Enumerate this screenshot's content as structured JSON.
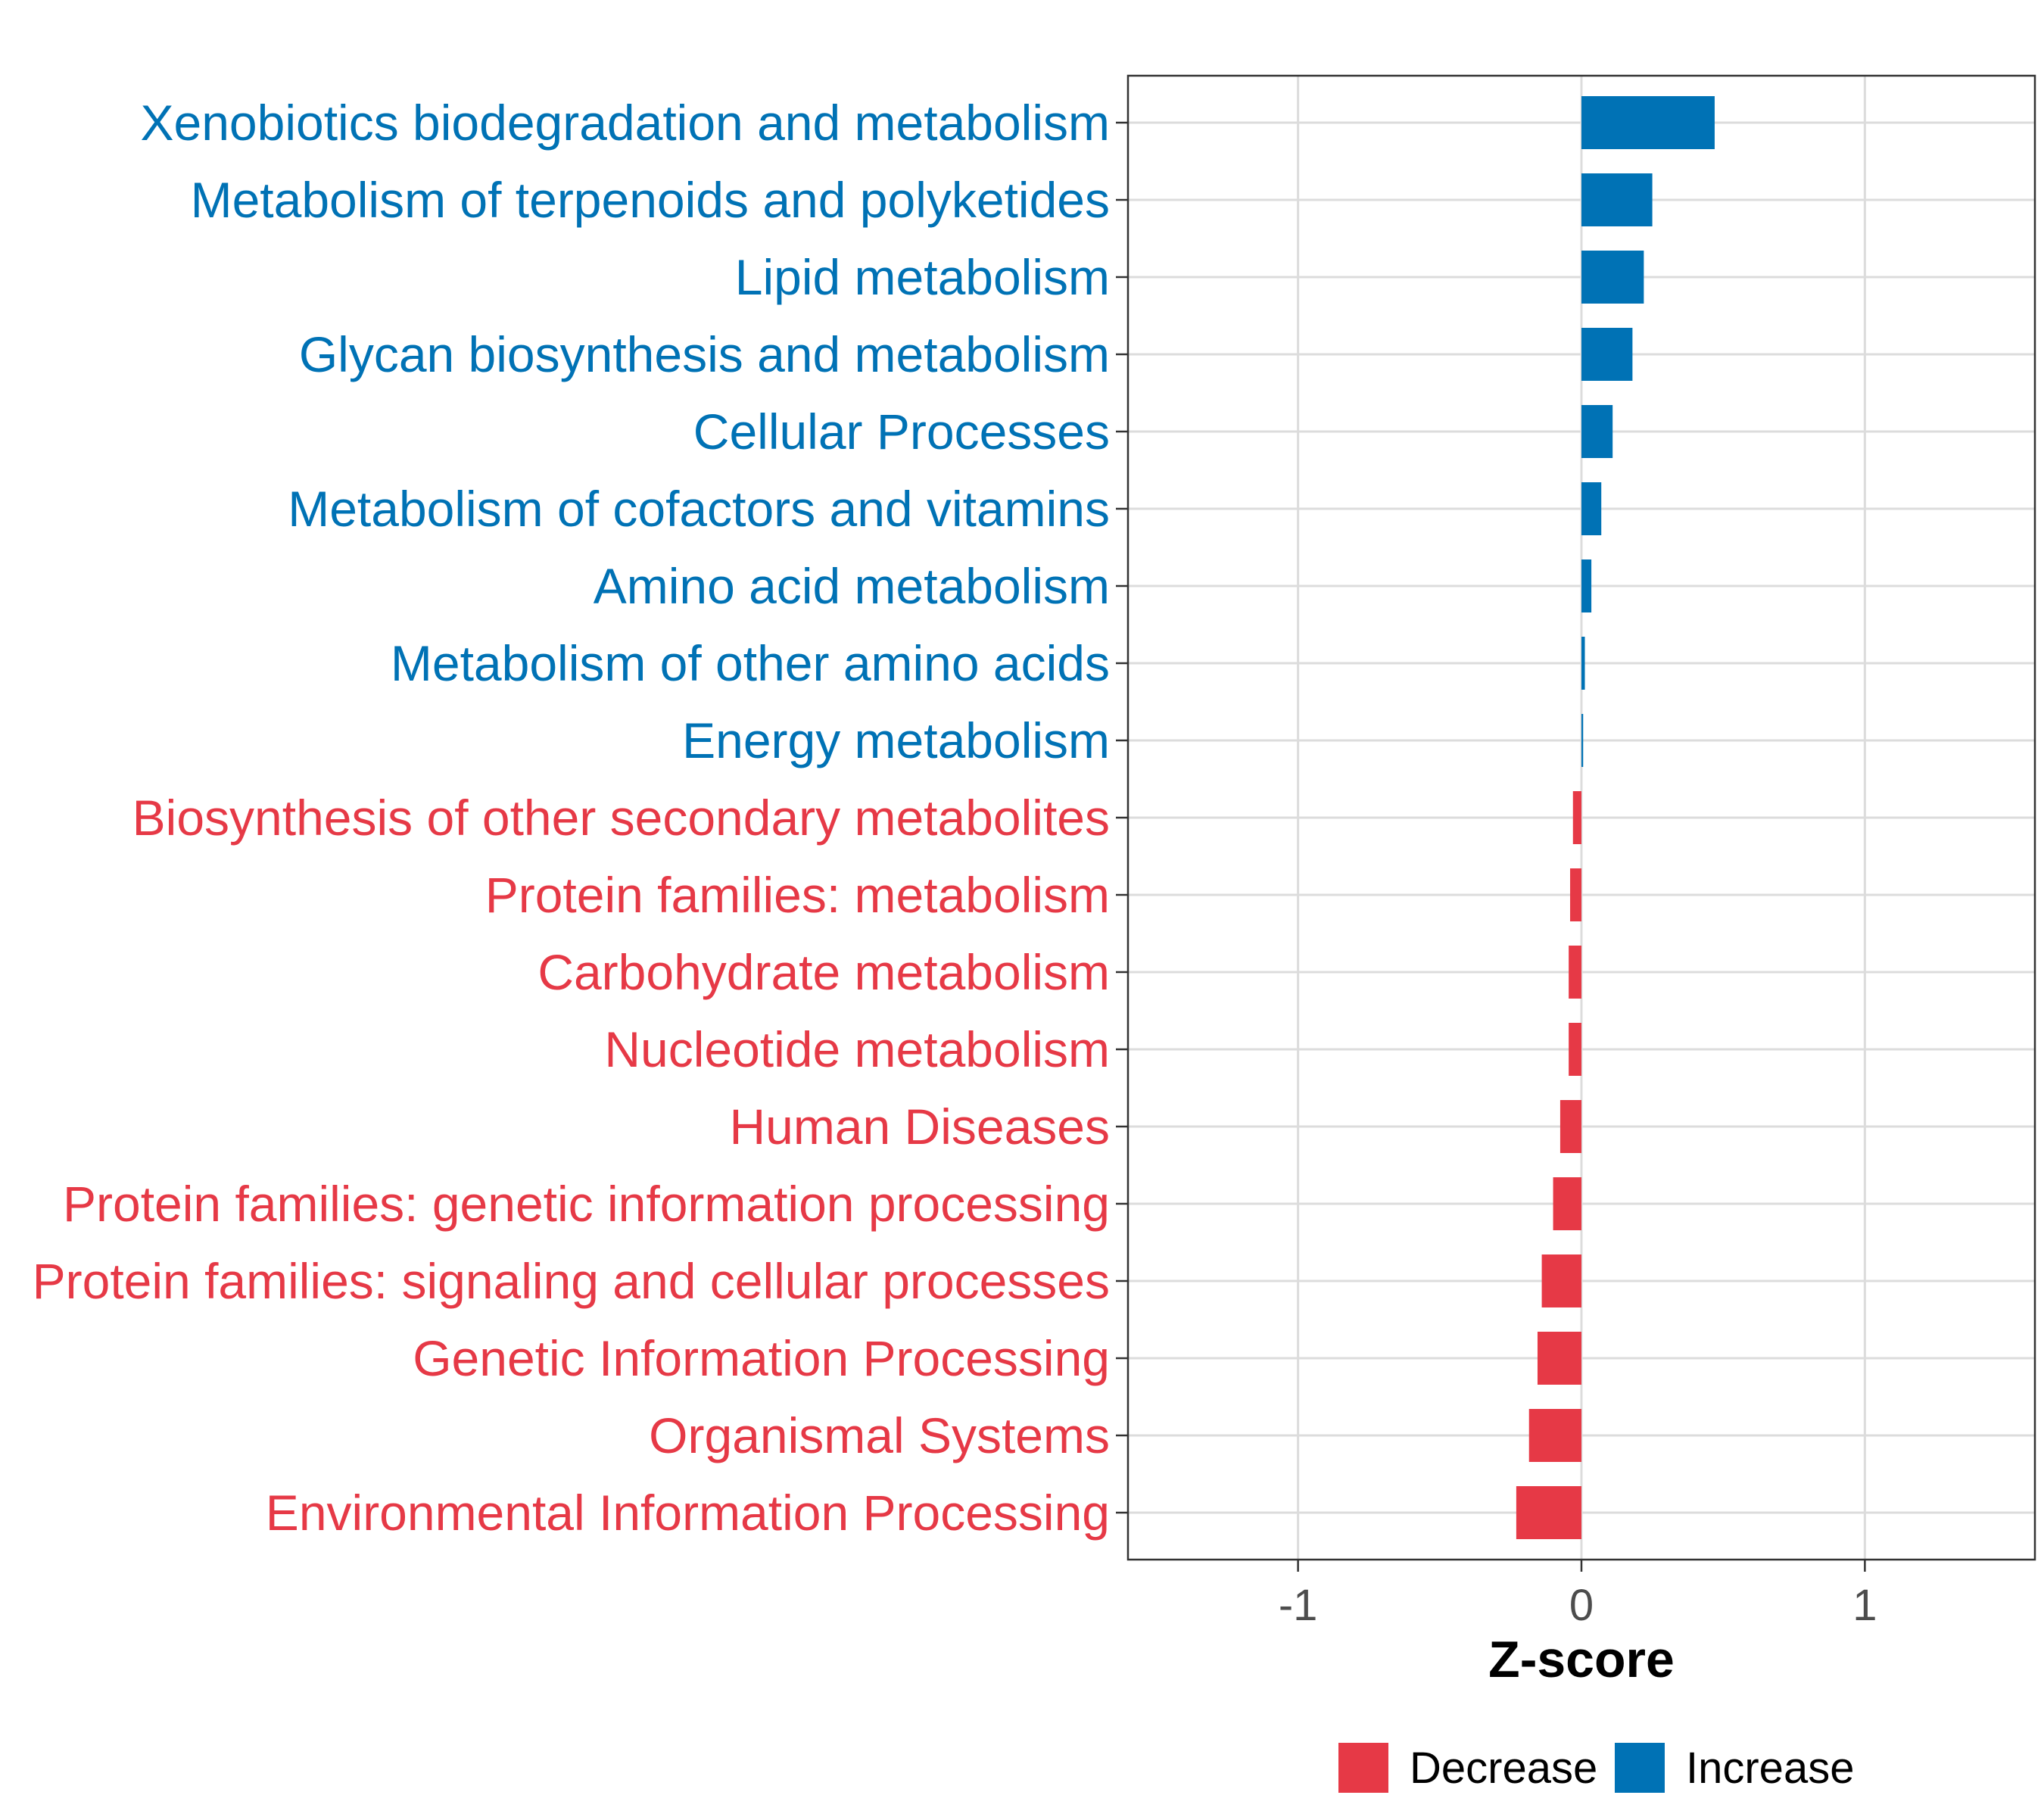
{
  "chart_data": {
    "type": "bar",
    "orientation": "horizontal",
    "title": "",
    "xlabel": "Z-score",
    "ylabel": "",
    "xlim": [
      -1.6,
      1.6
    ],
    "xticks": [
      -1,
      0,
      1
    ],
    "xtick_labels": [
      "-1",
      "0",
      "1"
    ],
    "grid": true,
    "legend_position": "bottom",
    "colors": {
      "Decrease": "#e63946",
      "Increase": "#0072b5"
    },
    "categories": [
      "Xenobiotics biodegradation and metabolism",
      "Metabolism of terpenoids and polyketides",
      "Lipid metabolism",
      "Glycan biosynthesis and metabolism",
      "Cellular Processes",
      "Metabolism of cofactors and vitamins",
      "Amino acid metabolism",
      "Metabolism of other amino acids",
      "Energy metabolism",
      "Biosynthesis of other secondary metabolites",
      "Protein families: metabolism",
      "Carbohydrate metabolism",
      "Nucleotide metabolism",
      "Human Diseases",
      "Protein families: genetic information processing",
      "Protein families: signaling and cellular processes",
      "Genetic Information Processing",
      "Organismal Systems",
      "Environmental Information Processing"
    ],
    "values": [
      0.47,
      0.25,
      0.22,
      0.18,
      0.11,
      0.07,
      0.035,
      0.012,
      0.006,
      -0.03,
      -0.04,
      -0.045,
      -0.045,
      -0.075,
      -0.1,
      -0.14,
      -0.155,
      -0.185,
      -0.23
    ],
    "groups": [
      "Increase",
      "Increase",
      "Increase",
      "Increase",
      "Increase",
      "Increase",
      "Increase",
      "Increase",
      "Increase",
      "Decrease",
      "Decrease",
      "Decrease",
      "Decrease",
      "Decrease",
      "Decrease",
      "Decrease",
      "Decrease",
      "Decrease",
      "Decrease"
    ],
    "legend": [
      "Decrease",
      "Increase"
    ]
  }
}
